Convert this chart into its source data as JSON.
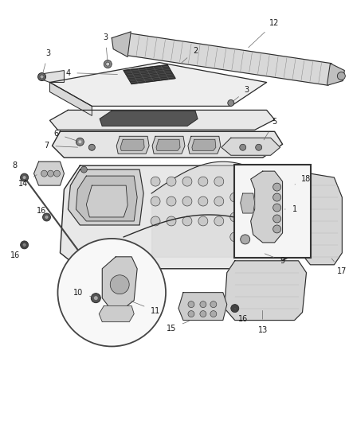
{
  "background_color": "#ffffff",
  "fig_width": 4.38,
  "fig_height": 5.33,
  "dpi": 100,
  "line_color": "#2a2a2a",
  "fill_light": "#f0f0f0",
  "fill_mid": "#e0e0e0",
  "fill_dark": "#c8c8c8",
  "fill_black": "#1a1a1a",
  "label_fontsize": 7.0,
  "label_color": "#1a1a1a"
}
